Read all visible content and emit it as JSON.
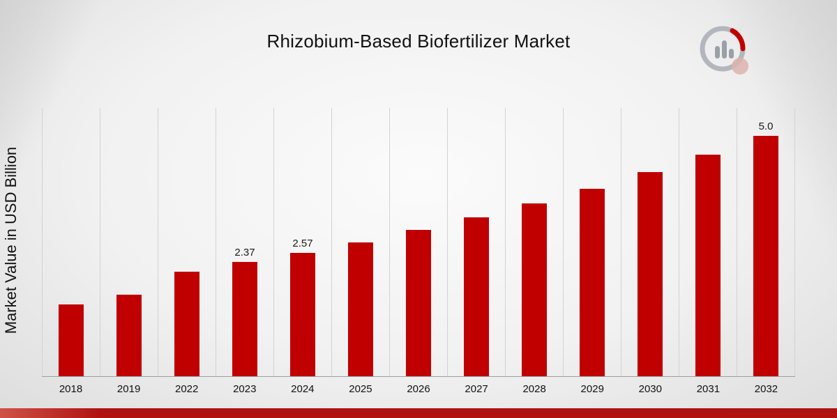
{
  "title": "Rhizobium-Based Biofertilizer Market",
  "y_axis_label": "Market Value in USD Billion",
  "brand": {
    "logo_name": "market-research-future-logo"
  },
  "colors": {
    "bar": "#c00000",
    "accent_bar": "#b01212",
    "accent_bar_light": "#cf5247",
    "gridline": "#d2d2d2",
    "axis_line": "#9e9e9e",
    "logo_gray": "#a9adb5",
    "logo_red": "#c00000"
  },
  "chart_data": {
    "type": "bar",
    "title": "Rhizobium-Based Biofertilizer Market",
    "xlabel": "",
    "ylabel": "Market Value in USD Billion",
    "categories": [
      "2018",
      "2019",
      "2022",
      "2023",
      "2024",
      "2025",
      "2026",
      "2027",
      "2028",
      "2029",
      "2030",
      "2031",
      "2032"
    ],
    "values": [
      1.5,
      1.7,
      2.18,
      2.37,
      2.57,
      2.79,
      3.04,
      3.3,
      3.59,
      3.9,
      4.24,
      4.61,
      5.0
    ],
    "bar_labels": [
      "",
      "",
      "",
      "2.37",
      "2.57",
      "",
      "",
      "",
      "",
      "",
      "",
      "",
      "5.0"
    ],
    "ylim": [
      0,
      5.58
    ],
    "grid": "vertical-only",
    "legend": "none"
  }
}
